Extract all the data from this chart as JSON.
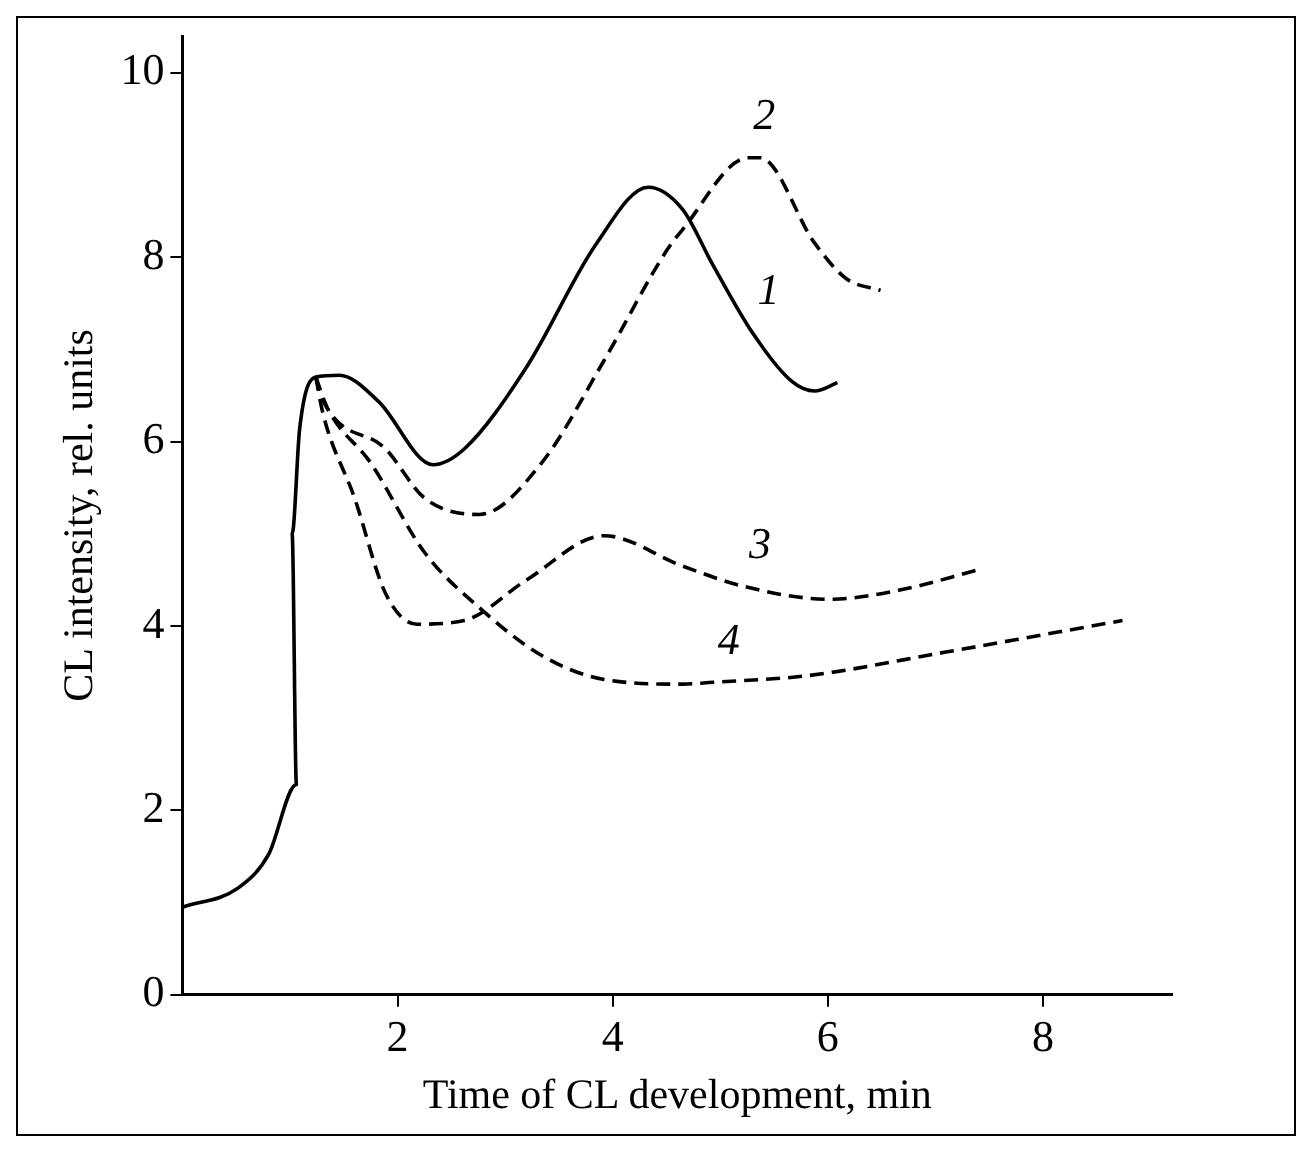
{
  "chart_data": {
    "type": "line",
    "xlabel": "Time of CL development, min",
    "ylabel": "CL intensity, rel. units",
    "xlim": [
      0,
      9.2
    ],
    "ylim": [
      0,
      10.4
    ],
    "xticks": [
      2,
      4,
      6,
      8
    ],
    "yticks": [
      0,
      2,
      4,
      6,
      8,
      10
    ],
    "grid": false,
    "legend": false,
    "marker": "none",
    "series": [
      {
        "name": "1",
        "color": "#000000",
        "line_style": "solid",
        "x": [
          0,
          0.52,
          0.8,
          1.06,
          1.02,
          1.09,
          1.24,
          1.46,
          1.82,
          2.33,
          2.62,
          3.2,
          3.85,
          4.33,
          4.65,
          4.93,
          5.3,
          5.66,
          5.88,
          6.09
        ],
        "values": [
          0.95,
          1.16,
          1.52,
          2.28,
          5.0,
          6.14,
          6.7,
          6.72,
          6.44,
          5.75,
          5.92,
          6.81,
          8.15,
          8.76,
          8.52,
          7.92,
          7.18,
          6.66,
          6.55,
          6.64
        ]
      },
      {
        "name": "2",
        "color": "#000000",
        "line_style": "dashed",
        "x": [
          1.24,
          1.31,
          1.89,
          2.25,
          2.76,
          3.34,
          3.92,
          4.5,
          4.65,
          5.26,
          5.37,
          5.88,
          6.17,
          6.49
        ],
        "values": [
          6.7,
          6.44,
          5.92,
          5.39,
          5.21,
          5.77,
          6.88,
          8.07,
          8.3,
          9.08,
          9.08,
          8.15,
          7.77,
          7.64
        ]
      },
      {
        "name": "3",
        "color": "#000000",
        "line_style": "dashed",
        "x": [
          1.24,
          1.31,
          1.6,
          1.89,
          2.18,
          2.62,
          3.2,
          3.92,
          4.65,
          5.22,
          6.02,
          6.67,
          7.4
        ],
        "values": [
          6.7,
          6.29,
          5.39,
          4.35,
          4.02,
          4.06,
          4.5,
          4.98,
          4.65,
          4.43,
          4.29,
          4.39,
          4.61
        ]
      },
      {
        "name": "4",
        "color": "#000000",
        "line_style": "dashed",
        "x": [
          1.24,
          1.35,
          1.75,
          2.25,
          2.76,
          3.34,
          3.92,
          4.65,
          4.93,
          5.8,
          7.11,
          8.74
        ],
        "values": [
          6.7,
          6.36,
          5.77,
          4.8,
          4.2,
          3.68,
          3.42,
          3.37,
          3.39,
          3.46,
          3.72,
          4.06
        ]
      }
    ]
  }
}
